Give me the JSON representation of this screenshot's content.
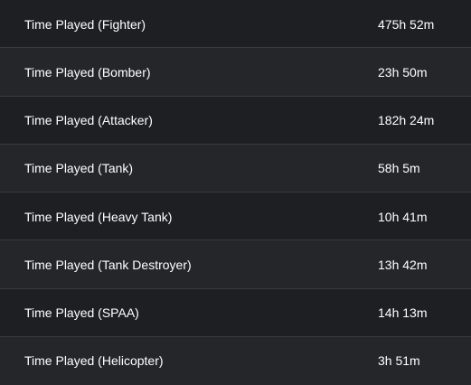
{
  "stats": [
    {
      "label": "Time Played (Fighter)",
      "value": "475h 52m"
    },
    {
      "label": "Time Played (Bomber)",
      "value": "23h 50m"
    },
    {
      "label": "Time Played (Attacker)",
      "value": "182h 24m"
    },
    {
      "label": "Time Played (Tank)",
      "value": "58h 5m"
    },
    {
      "label": "Time Played (Heavy Tank)",
      "value": "10h 41m"
    },
    {
      "label": "Time Played (Tank Destroyer)",
      "value": "13h 42m"
    },
    {
      "label": "Time Played (SPAA)",
      "value": "14h 13m"
    },
    {
      "label": "Time Played (Helicopter)",
      "value": "3h 51m"
    }
  ],
  "colors": {
    "background": "#1e1f22",
    "row_alt": "#25262a",
    "separator": "#3a3b3f",
    "text": "#ffffff"
  }
}
